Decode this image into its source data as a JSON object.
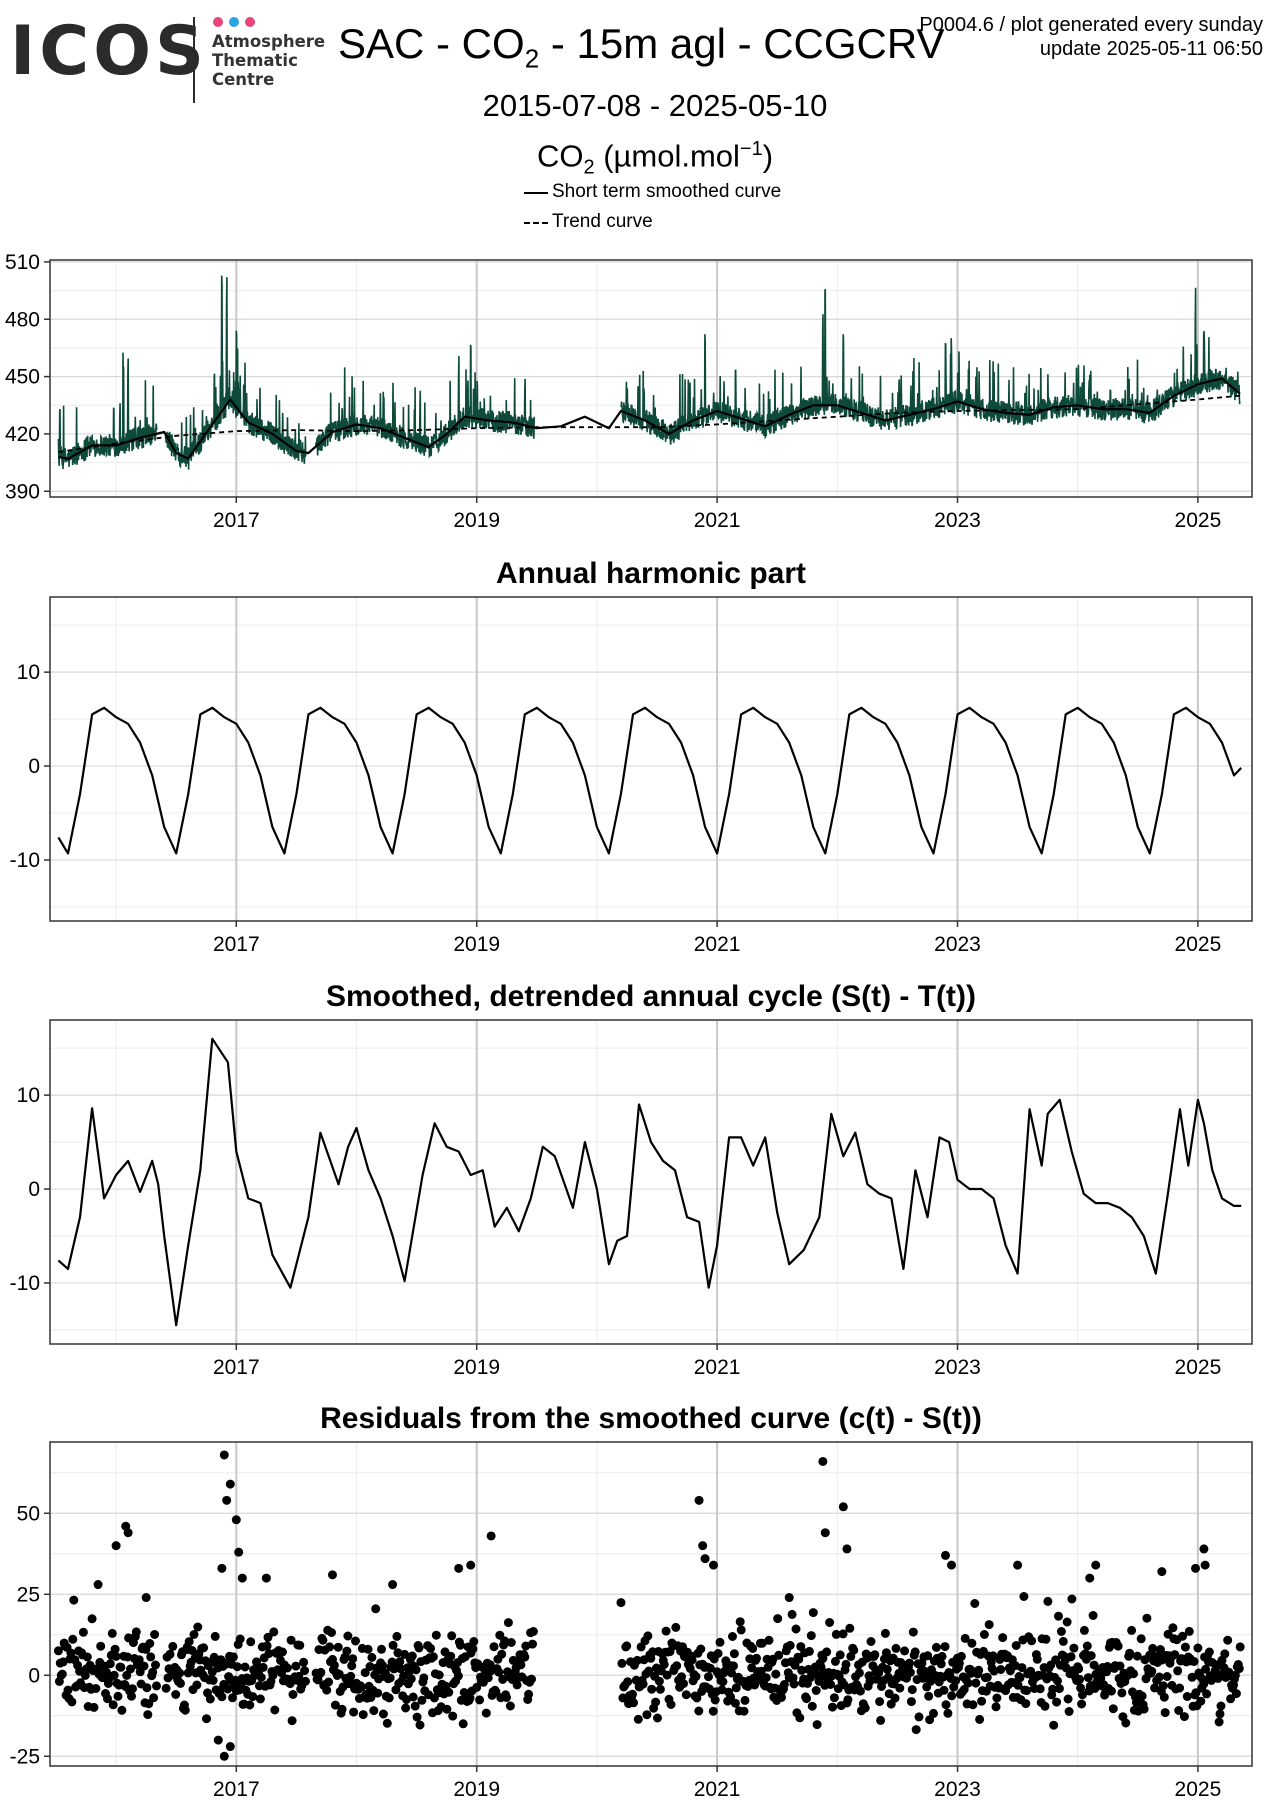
{
  "header": {
    "logo_text": "ICOS",
    "logo_subtitle": [
      "Atmosphere",
      "Thematic",
      "Centre"
    ],
    "title_prefix": "SAC - CO",
    "title_sub": "2",
    "title_suffix": " - 15m agl - CCGCRV",
    "plot_id": "P0004.6 / plot generated every sunday",
    "update": "update  2025-05-11 06:50",
    "date_range": "2015-07-08 - 2025-05-10",
    "unit_prefix": "CO",
    "unit_sub": "2",
    "unit_main": " (µmol.mol",
    "unit_sup": "−1",
    "unit_close": ")"
  },
  "legend": {
    "items": [
      {
        "label": "Short term smoothed curve",
        "style": "solid"
      },
      {
        "label": "Trend curve",
        "style": "dashed"
      }
    ]
  },
  "colors": {
    "logo_dots": [
      "#e8457c",
      "#2aa3e3",
      "#e8457c"
    ],
    "data_series": "#0d4a3a",
    "smooth_curve": "#000000",
    "grid": "#d9d9d9",
    "major_vgrid": "#c8c8c8",
    "panel_border": "#333333"
  },
  "chart_data": [
    {
      "type": "line",
      "title": "",
      "xlim": [
        2015.45,
        2025.45
      ],
      "ylim": [
        387,
        511
      ],
      "yticks": [
        390,
        420,
        450,
        480,
        510
      ],
      "xticks": [
        2017,
        2019,
        2021,
        2023,
        2025
      ],
      "grid": true,
      "series": [
        {
          "name": "Short term smoothed curve",
          "style": "solid",
          "x": [
            2015.52,
            2015.6,
            2015.8,
            2016.0,
            2016.2,
            2016.4,
            2016.5,
            2016.6,
            2016.8,
            2016.95,
            2017.1,
            2017.3,
            2017.5,
            2017.6,
            2017.8,
            2018.0,
            2018.2,
            2018.4,
            2018.6,
            2018.75,
            2018.9,
            2019.1,
            2019.3,
            2019.5,
            2019.7,
            2019.9,
            2020.1,
            2020.2,
            2020.4,
            2020.6,
            2020.8,
            2021.0,
            2021.2,
            2021.4,
            2021.6,
            2021.8,
            2022.0,
            2022.2,
            2022.4,
            2022.6,
            2022.8,
            2023.0,
            2023.2,
            2023.4,
            2023.6,
            2023.8,
            2024.0,
            2024.2,
            2024.4,
            2024.6,
            2024.8,
            2025.0,
            2025.2,
            2025.35
          ],
          "y": [
            408,
            407,
            414,
            414,
            418,
            421,
            410,
            407,
            425,
            438,
            426,
            420,
            411,
            410,
            421,
            425,
            423,
            418,
            413,
            420,
            429,
            427,
            426,
            423,
            424,
            429,
            423,
            432,
            427,
            420,
            427,
            432,
            428,
            424,
            430,
            435,
            435,
            431,
            427,
            430,
            433,
            437,
            433,
            431,
            430,
            434,
            435,
            433,
            433,
            431,
            440,
            446,
            449,
            441
          ]
        },
        {
          "name": "Trend curve",
          "style": "dashed",
          "x": [
            2015.52,
            2016.0,
            2016.5,
            2017.0,
            2017.5,
            2018.0,
            2018.5,
            2019.0,
            2019.5,
            2020.0,
            2020.5,
            2021.0,
            2021.5,
            2022.0,
            2022.5,
            2023.0,
            2023.5,
            2024.0,
            2024.5,
            2025.0,
            2025.35
          ],
          "y": [
            410.5,
            415,
            419,
            421.5,
            422,
            421.5,
            422,
            423,
            423.5,
            423.5,
            423.5,
            425,
            427,
            429,
            431,
            432,
            432.5,
            433,
            435.5,
            438,
            440
          ]
        }
      ]
    },
    {
      "type": "line",
      "title": "Annual harmonic part",
      "xlim": [
        2015.45,
        2025.45
      ],
      "ylim": [
        -16.5,
        18
      ],
      "yticks": [
        -10,
        0,
        10
      ],
      "xticks": [
        2017,
        2019,
        2021,
        2023,
        2025
      ],
      "grid": true,
      "series": [
        {
          "name": "",
          "style": "solid",
          "x": [
            2015.52,
            2015.6,
            2015.7,
            2015.8,
            2015.9,
            2016.0,
            2016.1,
            2016.2,
            2016.3,
            2016.4,
            2016.5,
            2016.6,
            2016.7,
            2016.8,
            2016.9,
            2017.0,
            2017.1,
            2017.2,
            2017.3,
            2017.4,
            2017.5,
            2017.6,
            2017.7,
            2017.8,
            2017.9,
            2018.0,
            2018.1,
            2018.2,
            2018.3,
            2018.4,
            2018.5,
            2018.6,
            2018.7,
            2018.8,
            2018.9,
            2019.0,
            2019.1,
            2019.2,
            2019.3,
            2019.4,
            2019.5,
            2019.6,
            2019.7,
            2019.8,
            2019.9,
            2020.0,
            2020.1,
            2020.2,
            2020.3,
            2020.4,
            2020.5,
            2020.6,
            2020.7,
            2020.8,
            2020.9,
            2021.0,
            2021.1,
            2021.2,
            2021.3,
            2021.4,
            2021.5,
            2021.6,
            2021.7,
            2021.8,
            2021.9,
            2022.0,
            2022.1,
            2022.2,
            2022.3,
            2022.4,
            2022.5,
            2022.6,
            2022.7,
            2022.8,
            2022.9,
            2023.0,
            2023.1,
            2023.2,
            2023.3,
            2023.4,
            2023.5,
            2023.6,
            2023.7,
            2023.8,
            2023.9,
            2024.0,
            2024.1,
            2024.2,
            2024.3,
            2024.4,
            2024.5,
            2024.6,
            2024.7,
            2024.8,
            2024.9,
            2025.0,
            2025.1,
            2025.2,
            2025.3,
            2025.36
          ],
          "y": [
            -7.6,
            -9.3,
            -3.0,
            5.5,
            6.2,
            5.2,
            4.5,
            2.5,
            -1.0,
            -6.5,
            -9.3,
            -3.0,
            5.5,
            6.2,
            5.2,
            4.5,
            2.5,
            -1.0,
            -6.5,
            -9.3,
            -3.0,
            5.5,
            6.2,
            5.2,
            4.5,
            2.5,
            -1.0,
            -6.5,
            -9.3,
            -3.0,
            5.5,
            6.2,
            5.2,
            4.5,
            2.5,
            -1.0,
            -6.5,
            -9.3,
            -3.0,
            5.5,
            6.2,
            5.2,
            4.5,
            2.5,
            -1.0,
            -6.5,
            -9.3,
            -3.0,
            5.5,
            6.2,
            5.2,
            4.5,
            2.5,
            -1.0,
            -6.5,
            -9.3,
            -3.0,
            5.5,
            6.2,
            5.2,
            4.5,
            2.5,
            -1.0,
            -6.5,
            -9.3,
            -3.0,
            5.5,
            6.2,
            5.2,
            4.5,
            2.5,
            -1.0,
            -6.5,
            -9.3,
            -3.0,
            5.5,
            6.2,
            5.2,
            4.5,
            2.5,
            -1.0,
            -6.5,
            -9.3,
            -3.0,
            5.5,
            6.2,
            5.2,
            4.5,
            2.5,
            -1.0,
            -6.5,
            -9.3,
            -3.0,
            5.5,
            6.2,
            5.2,
            4.5,
            2.5,
            -1.0,
            -0.2
          ]
        }
      ]
    },
    {
      "type": "line",
      "title": "Smoothed, detrended annual cycle (S(t) - T(t))",
      "xlim": [
        2015.45,
        2025.45
      ],
      "ylim": [
        -16.5,
        18
      ],
      "yticks": [
        -10,
        0,
        10
      ],
      "xticks": [
        2017,
        2019,
        2021,
        2023,
        2025
      ],
      "grid": true,
      "series": [
        {
          "name": "",
          "style": "solid",
          "x": [
            2015.52,
            2015.6,
            2015.7,
            2015.8,
            2015.9,
            2016.0,
            2016.1,
            2016.2,
            2016.3,
            2016.35,
            2016.4,
            2016.5,
            2016.6,
            2016.7,
            2016.8,
            2016.93,
            2017.0,
            2017.1,
            2017.2,
            2017.3,
            2017.45,
            2017.6,
            2017.7,
            2017.85,
            2017.93,
            2018.0,
            2018.1,
            2018.2,
            2018.3,
            2018.4,
            2018.55,
            2018.65,
            2018.75,
            2018.85,
            2018.95,
            2019.05,
            2019.15,
            2019.25,
            2019.35,
            2019.45,
            2019.55,
            2019.65,
            2019.8,
            2019.9,
            2020.0,
            2020.1,
            2020.17,
            2020.25,
            2020.35,
            2020.45,
            2020.55,
            2020.65,
            2020.75,
            2020.85,
            2020.93,
            2021.0,
            2021.1,
            2021.2,
            2021.3,
            2021.4,
            2021.5,
            2021.6,
            2021.72,
            2021.85,
            2021.95,
            2022.05,
            2022.15,
            2022.25,
            2022.35,
            2022.45,
            2022.55,
            2022.65,
            2022.75,
            2022.85,
            2022.93,
            2023.0,
            2023.1,
            2023.2,
            2023.3,
            2023.4,
            2023.5,
            2023.6,
            2023.7,
            2023.75,
            2023.85,
            2023.95,
            2024.05,
            2024.15,
            2024.25,
            2024.35,
            2024.45,
            2024.55,
            2024.65,
            2024.75,
            2024.85,
            2024.92,
            2025.0,
            2025.05,
            2025.12,
            2025.2,
            2025.3,
            2025.36
          ],
          "y": [
            -7.6,
            -8.5,
            -3.0,
            8.6,
            -1.0,
            1.5,
            3.0,
            -0.3,
            3.0,
            0.5,
            -5.0,
            -14.5,
            -6.0,
            2.0,
            16.0,
            13.5,
            4.0,
            -1.0,
            -1.5,
            -7.0,
            -10.5,
            -3.0,
            6.0,
            0.5,
            4.5,
            6.5,
            2.0,
            -1.0,
            -5.0,
            -9.8,
            1.5,
            7.0,
            4.5,
            4.0,
            1.5,
            2.0,
            -4.0,
            -2.0,
            -4.5,
            -1.0,
            4.5,
            3.5,
            -2.0,
            5.0,
            0.0,
            -8.0,
            -5.5,
            -5.0,
            9.0,
            5.0,
            3.0,
            2.0,
            -3.0,
            -3.5,
            -10.5,
            -6.0,
            5.5,
            5.5,
            2.5,
            5.5,
            -2.5,
            -8.0,
            -6.5,
            -3.0,
            8.0,
            3.5,
            6.0,
            0.5,
            -0.5,
            -1.0,
            -8.5,
            2.0,
            -3.0,
            5.5,
            5.0,
            1.0,
            0.0,
            0.0,
            -1.0,
            -6.0,
            -9.0,
            8.5,
            2.5,
            8.0,
            9.5,
            4.0,
            -0.5,
            -1.5,
            -1.5,
            -2.0,
            -3.0,
            -5.0,
            -9.0,
            -0.5,
            8.5,
            2.5,
            9.5,
            7.0,
            2.0,
            -1.0,
            -1.8,
            -1.8
          ]
        }
      ]
    },
    {
      "type": "scatter",
      "title": "Residuals from the smoothed curve (c(t) - S(t))",
      "xlim": [
        2015.45,
        2025.45
      ],
      "ylim": [
        -28,
        72
      ],
      "yticks": [
        -25,
        0,
        25,
        50
      ],
      "xticks": [
        2017,
        2019,
        2021,
        2023,
        2025
      ],
      "grid": true,
      "gaps": [
        [
          2016.34,
          2016.41
        ],
        [
          2017.58,
          2017.66
        ],
        [
          2019.48,
          2020.2
        ]
      ],
      "series": [
        {
          "name": "",
          "style": "points",
          "x": [
            2016.08,
            2016.1,
            2016.0,
            2015.85,
            2016.25,
            2016.9,
            2016.95,
            2016.92,
            2017.0,
            2017.02,
            2016.88,
            2017.05,
            2017.25,
            2017.8,
            2018.3,
            2018.85,
            2018.95,
            2019.12,
            2020.85,
            2020.88,
            2020.9,
            2020.97,
            2021.6,
            2021.88,
            2021.9,
            2022.05,
            2022.08,
            2022.9,
            2022.95,
            2023.5,
            2024.15,
            2024.1,
            2024.7,
            2024.98,
            2025.05,
            2025.06,
            2016.9,
            2016.95,
            2016.85
          ],
          "y": [
            46,
            44,
            40,
            28,
            24,
            68,
            59,
            54,
            48,
            38,
            33,
            30,
            30,
            31,
            28,
            33,
            34,
            43,
            54,
            40,
            36,
            34,
            24,
            66,
            44,
            52,
            39,
            37,
            34,
            34,
            34,
            30,
            32,
            33,
            39,
            34,
            -25,
            -22,
            -20
          ]
        }
      ]
    }
  ]
}
